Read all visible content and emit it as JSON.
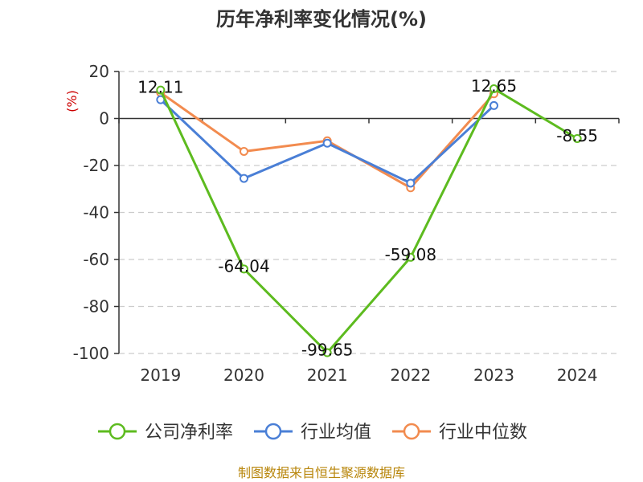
{
  "chart_data": {
    "type": "line",
    "title": "历年净利率变化情况(%)",
    "ylabel": "(%)",
    "ylim": [
      -100,
      20
    ],
    "yticks": [
      20,
      0,
      -20,
      -40,
      -60,
      -80,
      -100
    ],
    "grid": true,
    "legend_position": "bottom",
    "categories": [
      "2019",
      "2020",
      "2021",
      "2022",
      "2023",
      "2024"
    ],
    "series": [
      {
        "name": "公司净利率",
        "color": "#5dbb1f",
        "values": [
          12.11,
          -64.04,
          -99.65,
          -59.08,
          12.65,
          -8.55
        ],
        "data_labels": [
          "12.11",
          "-64.04",
          "-99.65",
          "-59.08",
          "12.65",
          "-8.55"
        ]
      },
      {
        "name": "行业均值",
        "color": "#4a7fd6",
        "values": [
          8.0,
          -25.5,
          -10.5,
          -27.5,
          5.5,
          null
        ]
      },
      {
        "name": "行业中位数",
        "color": "#f28b4f",
        "values": [
          11.0,
          -14.0,
          -9.5,
          -29.5,
          10.5,
          null
        ]
      }
    ],
    "source": "制图数据来自恒生聚源数据库"
  }
}
